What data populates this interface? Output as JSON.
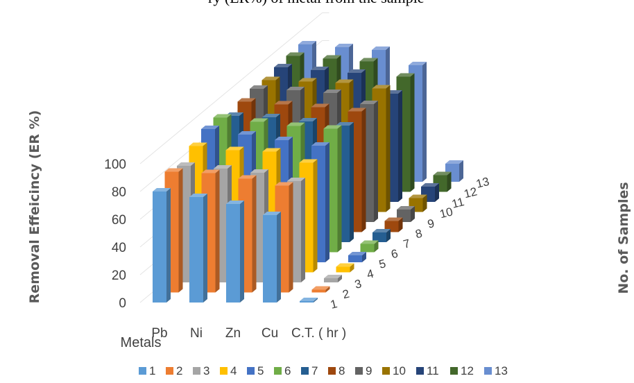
{
  "caption_fragment": "ry (ER%) of metal from the sample",
  "chart_data": {
    "type": "bar",
    "style": "3d-column",
    "categories": [
      "Pb",
      "Ni",
      "Zn",
      "Cu",
      "C.T. ( hr )"
    ],
    "x_axis_title": "Metals",
    "z_axis_title": "No. of Samples",
    "ylabel": "Removal Effeicincy (ER %)",
    "yticks": [
      0,
      20,
      40,
      60,
      80,
      100
    ],
    "ylim": [
      0,
      100
    ],
    "depth_labels": [
      "1",
      "2",
      "3",
      "4",
      "5",
      "6",
      "7",
      "8",
      "9",
      "10",
      "11",
      "12",
      "13"
    ],
    "legend_position": "bottom",
    "series": [
      {
        "name": "1",
        "color": "#5B9BD5",
        "values": [
          80,
          76,
          71,
          63,
          1
        ]
      },
      {
        "name": "2",
        "color": "#ED7D31",
        "values": [
          87,
          86,
          82,
          77,
          2
        ]
      },
      {
        "name": "3",
        "color": "#A5A5A5",
        "values": [
          84,
          82,
          79,
          73,
          3
        ]
      },
      {
        "name": "4",
        "color": "#FFC000",
        "values": [
          91,
          88,
          87,
          79,
          4
        ]
      },
      {
        "name": "5",
        "color": "#4472C4",
        "values": [
          96,
          92,
          88,
          84,
          5
        ]
      },
      {
        "name": "6",
        "color": "#70AD47",
        "values": [
          97,
          94,
          91,
          89,
          6
        ]
      },
      {
        "name": "7",
        "color": "#255E91",
        "values": [
          91,
          90,
          87,
          84,
          7
        ]
      },
      {
        "name": "8",
        "color": "#9E480E",
        "values": [
          94,
          92,
          90,
          87,
          8
        ]
      },
      {
        "name": "9",
        "color": "#636363",
        "values": [
          96,
          95,
          93,
          85,
          9
        ]
      },
      {
        "name": "10",
        "color": "#997300",
        "values": [
          95,
          94,
          93,
          89,
          10
        ]
      },
      {
        "name": "11",
        "color": "#264478",
        "values": [
          97,
          95,
          93,
          78,
          11
        ]
      },
      {
        "name": "12",
        "color": "#43682B",
        "values": [
          98,
          96,
          94,
          83,
          12
        ]
      },
      {
        "name": "13",
        "color": "#698ED0",
        "values": [
          99,
          97,
          95,
          84,
          13
        ]
      }
    ]
  }
}
